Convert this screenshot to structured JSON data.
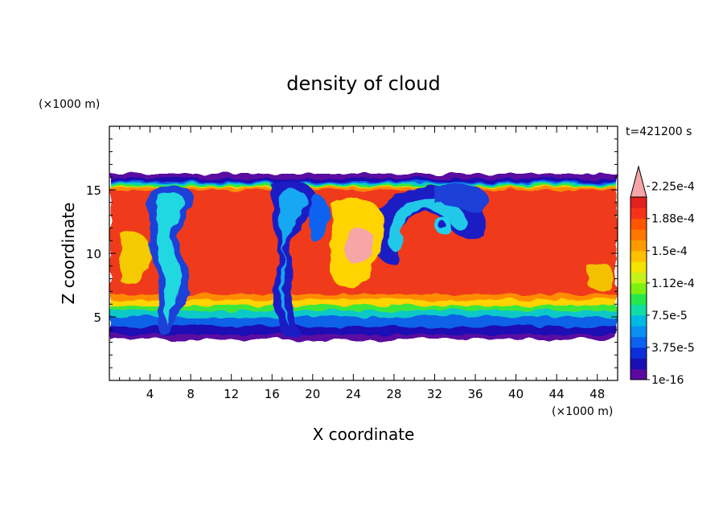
{
  "chart_data": {
    "type": "heatmap",
    "title": "density of cloud",
    "xlabel": "X coordinate",
    "ylabel": "Z coordinate",
    "x_unit": "(×1000 m)",
    "y_unit": "(×1000 m)",
    "time_label": "t=421200 s",
    "xlim": [
      0,
      50
    ],
    "ylim": [
      0,
      20
    ],
    "x_ticks": [
      4,
      8,
      12,
      16,
      20,
      24,
      28,
      32,
      36,
      40,
      44,
      48
    ],
    "y_ticks": [
      5,
      10,
      15
    ],
    "colorbar": {
      "labels": [
        "1e-16",
        "3.75e-5",
        "7.5e-5",
        "1.12e-4",
        "1.5e-4",
        "1.88e-4",
        "2.25e-4"
      ],
      "colors": [
        "#5a0aa0",
        "#1a0fb4",
        "#0b2fd8",
        "#0c62f0",
        "#0b8ff2",
        "#00b9e2",
        "#10dca6",
        "#26e84c",
        "#7ef010",
        "#c6f21a",
        "#f4e400",
        "#ffc100",
        "#ff9b00",
        "#ff7600",
        "#ff5500",
        "#f6331a",
        "#e4201e",
        "#f6a6a6"
      ],
      "extend": "max"
    },
    "grid": false
  }
}
